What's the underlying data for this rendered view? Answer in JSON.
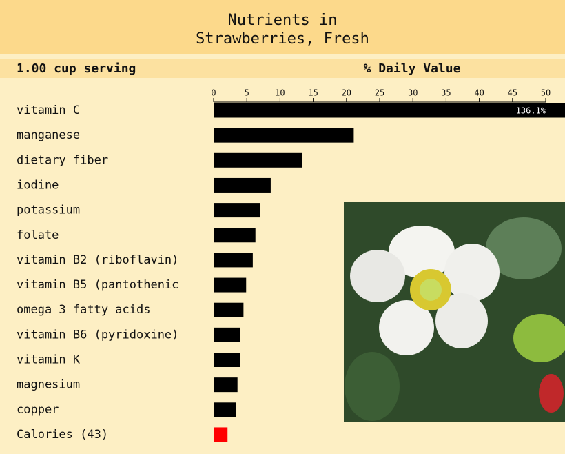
{
  "chart_data": {
    "type": "hbar",
    "title": [
      "Nutrients in",
      "Strawberries, Fresh"
    ],
    "serving": "1.00 cup serving",
    "xlabel": "% Daily Value",
    "categories": [
      "vitamin C",
      "manganese",
      "dietary fiber",
      "iodine",
      "potassium",
      "folate",
      "vitamin B2 (riboflavin)",
      "vitamin B5 (pantothenic",
      "omega 3 fatty acids",
      "vitamin B6 (pyridoxine)",
      "vitamin K",
      "magnesium",
      "copper",
      "Calories (43)"
    ],
    "values": [
      136.1,
      21.1,
      13.3,
      8.6,
      7.0,
      6.3,
      5.9,
      4.9,
      4.5,
      4.0,
      4.0,
      3.6,
      3.4,
      2.1
    ],
    "value_labels": [
      "136.1%",
      null,
      null,
      null,
      null,
      null,
      null,
      null,
      null,
      null,
      null,
      null,
      null,
      null
    ],
    "colors": [
      "#000000",
      "#000000",
      "#000000",
      "#000000",
      "#000000",
      "#000000",
      "#000000",
      "#000000",
      "#000000",
      "#000000",
      "#000000",
      "#000000",
      "#000000",
      "#ff0000"
    ],
    "xlim": [
      0,
      50
    ],
    "xticks": [
      0,
      5,
      10,
      15,
      20,
      25,
      30,
      35,
      40,
      45,
      50
    ]
  }
}
